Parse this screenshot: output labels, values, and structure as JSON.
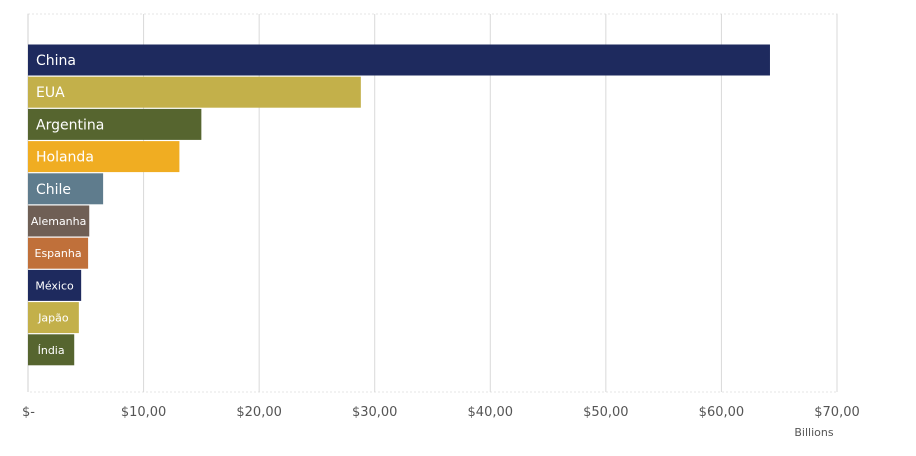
{
  "chart_data": {
    "type": "bar",
    "orientation": "horizontal",
    "title": "",
    "xlabel": "",
    "ylabel": "",
    "unit_label": "Billions",
    "xlim": [
      0,
      70
    ],
    "x_ticks": [
      0,
      10,
      20,
      30,
      40,
      50,
      60,
      70
    ],
    "x_tick_labels": [
      "$-",
      "$10,00",
      "$20,00",
      "$30,00",
      "$40,00",
      "$50,00",
      "$60,00",
      "$70,00"
    ],
    "grid": "vertical",
    "legend": "none",
    "categories": [
      "China",
      "EUA",
      "Argentina",
      "Holanda",
      "Chile",
      "Alemanha",
      "Espanha",
      "México",
      "Japão",
      "Índia"
    ],
    "values": [
      64.2,
      28.8,
      15.0,
      13.1,
      6.5,
      5.3,
      5.2,
      4.6,
      4.4,
      4.0
    ],
    "colors": [
      "#1e2a5e",
      "#c3b04a",
      "#56652f",
      "#f0ad22",
      "#5f7c8d",
      "#6f5f55",
      "#c0703a",
      "#1e2a5e",
      "#c3b04a",
      "#56652f"
    ]
  }
}
